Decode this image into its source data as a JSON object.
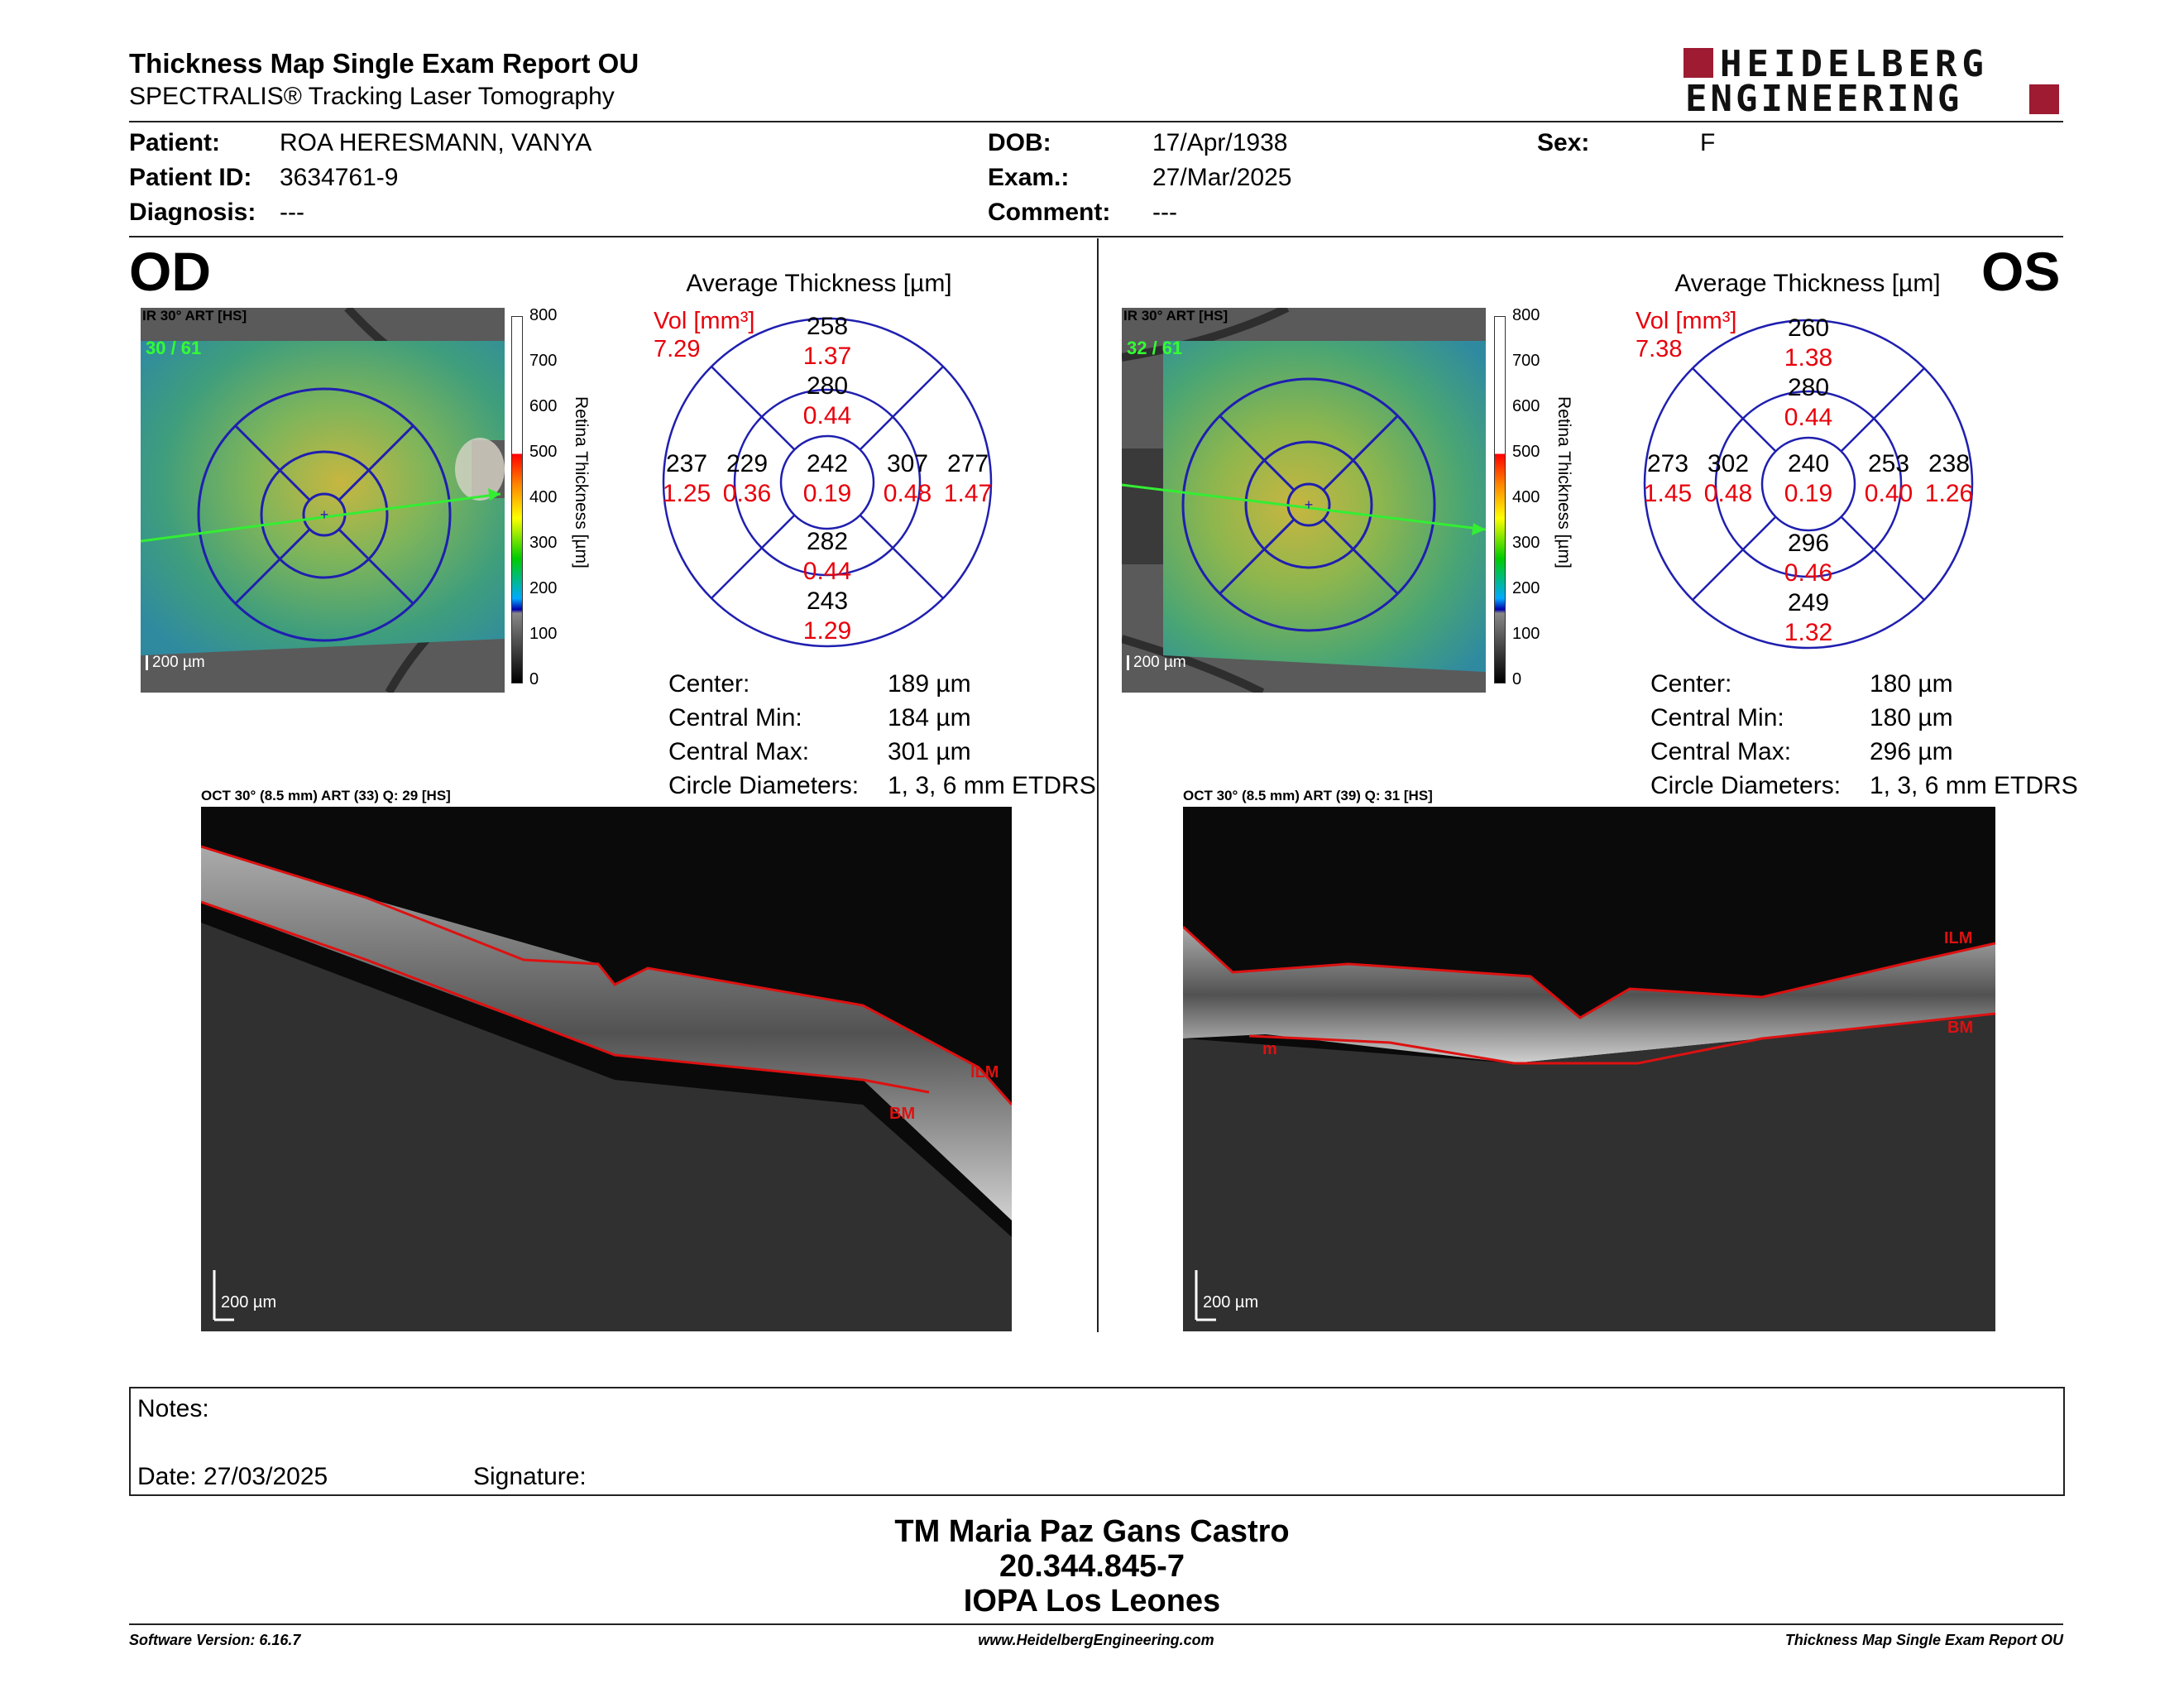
{
  "header": {
    "title": "Thickness Map Single Exam Report OU",
    "subtitle": "SPECTRALIS® Tracking Laser Tomography",
    "brand_line1": "HEIDELBERG",
    "brand_line2": "ENGINEERING"
  },
  "patient": {
    "patient_label": "Patient:",
    "patient_value": "ROA HERESMANN, VANYA",
    "id_label": "Patient ID:",
    "id_value": "3634761-9",
    "diagnosis_label": "Diagnosis:",
    "diagnosis_value": "---",
    "dob_label": "DOB:",
    "dob_value": "17/Apr/1938",
    "exam_label": "Exam.:",
    "exam_value": "27/Mar/2025",
    "comment_label": "Comment:",
    "comment_value": "---",
    "sex_label": "Sex:",
    "sex_value": "F"
  },
  "od": {
    "eye": "OD",
    "ir_label": "IR 30° ART [HS]",
    "frames": "30 / 61",
    "scale": "200 µm",
    "avg_title": "Average Thickness [µm]",
    "vol_label": "Vol [mm³]",
    "vol_value": "7.29",
    "grid": {
      "outer_top": "258",
      "outer_top_vol": "1.37",
      "inner_top": "280",
      "inner_top_vol": "0.44",
      "outer_left": "237",
      "outer_left_vol": "1.25",
      "inner_left": "229",
      "inner_left_vol": "0.36",
      "center": "242",
      "center_vol": "0.19",
      "inner_right": "307",
      "inner_right_vol": "0.48",
      "outer_right": "277",
      "outer_right_vol": "1.47",
      "inner_bottom": "282",
      "inner_bottom_vol": "0.44",
      "outer_bottom": "243",
      "outer_bottom_vol": "1.29"
    },
    "stats": {
      "center_label": "Center:",
      "center_value": "189 µm",
      "min_label": "Central Min:",
      "min_value": "184 µm",
      "max_label": "Central Max:",
      "max_value": "301 µm",
      "diam_label": "Circle Diameters:",
      "diam_value": "1, 3, 6 mm ETDRS"
    },
    "oct_label": "OCT 30° (8.5 mm) ART (33) Q: 29 [HS]",
    "oct_scale": "200 µm",
    "ilm": "ILM",
    "bm": "BM"
  },
  "os": {
    "eye": "OS",
    "ir_label": "IR 30° ART [HS]",
    "frames": "32 / 61",
    "scale": "200 µm",
    "avg_title": "Average Thickness [µm]",
    "vol_label": "Vol [mm³]",
    "vol_value": "7.38",
    "grid": {
      "outer_top": "260",
      "outer_top_vol": "1.38",
      "inner_top": "280",
      "inner_top_vol": "0.44",
      "outer_left": "273",
      "outer_left_vol": "1.45",
      "inner_left": "302",
      "inner_left_vol": "0.48",
      "center": "240",
      "center_vol": "0.19",
      "inner_right": "253",
      "inner_right_vol": "0.40",
      "outer_right": "238",
      "outer_right_vol": "1.26",
      "inner_bottom": "296",
      "inner_bottom_vol": "0.46",
      "outer_bottom": "249",
      "outer_bottom_vol": "1.32"
    },
    "stats": {
      "center_label": "Center:",
      "center_value": "180 µm",
      "min_label": "Central Min:",
      "min_value": "180 µm",
      "max_label": "Central Max:",
      "max_value": "296 µm",
      "diam_label": "Circle Diameters:",
      "diam_value": "1, 3, 6 mm ETDRS"
    },
    "oct_label": "OCT 30° (8.5 mm) ART (39) Q: 31 [HS]",
    "oct_scale": "200 µm",
    "ilm": "ILM",
    "bm": "BM",
    "m": "m"
  },
  "colorbar": {
    "ticks": [
      "800",
      "700",
      "600",
      "500",
      "400",
      "300",
      "200",
      "100",
      "0"
    ],
    "label": "Retina Thickness [µm]"
  },
  "notes": {
    "notes_label": "Notes:",
    "date_label": "Date: 27/03/2025",
    "signature_label": "Signature:"
  },
  "signature_block": {
    "name": "TM Maria Paz Gans Castro",
    "id": "20.344.845-7",
    "place": "IOPA Los Leones"
  },
  "footer": {
    "software": "Software Version: 6.16.7",
    "website": "www.HeidelbergEngineering.com",
    "report": "Thickness Map Single Exam Report OU"
  },
  "colors": {
    "grid_blue": "#1f1fb0",
    "vol_red": "#e8000b",
    "frame_green": "#33ff33",
    "brand_red": "#9e1b32",
    "seg_red": "#dd1111"
  }
}
